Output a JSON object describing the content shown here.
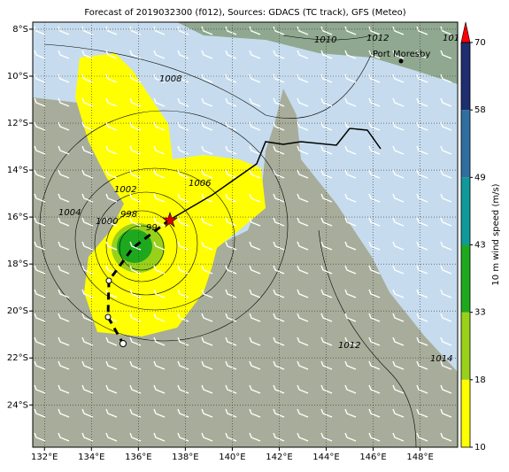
{
  "chart_data": {
    "type": "map",
    "title": "Forecast of 2019032300 (f012), Sources: GDACS (TC track), GFS (Meteo)",
    "xlim": [
      131.5,
      149.6
    ],
    "ylim": [
      -25.8,
      -7.7
    ],
    "xticks": [
      {
        "value": 132,
        "label": "132°E"
      },
      {
        "value": 134,
        "label": "134°E"
      },
      {
        "value": 136,
        "label": "136°E"
      },
      {
        "value": 138,
        "label": "138°E"
      },
      {
        "value": 140,
        "label": "140°E"
      },
      {
        "value": 142,
        "label": "142°E"
      },
      {
        "value": 144,
        "label": "144°E"
      },
      {
        "value": 146,
        "label": "146°E"
      },
      {
        "value": 148,
        "label": "148°E"
      }
    ],
    "yticks": [
      {
        "value": -8,
        "label": "8°S"
      },
      {
        "value": -10,
        "label": "10°S"
      },
      {
        "value": -12,
        "label": "12°S"
      },
      {
        "value": -14,
        "label": "14°S"
      },
      {
        "value": -16,
        "label": "16°S"
      },
      {
        "value": -18,
        "label": "18°S"
      },
      {
        "value": -20,
        "label": "20°S"
      },
      {
        "value": -22,
        "label": "22°S"
      },
      {
        "value": -24,
        "label": "24°S"
      }
    ],
    "grid": true,
    "place": "Port Moresby",
    "isobar_labels": [
      "1010",
      "1012",
      "101",
      "1008",
      "1006",
      "1004",
      "1002",
      "1000",
      "998",
      "99",
      "1012",
      "1014"
    ],
    "colorbar": {
      "label": "10 m wind speed (m/s)",
      "ticks": [
        10,
        18,
        33,
        43,
        49,
        58,
        70
      ],
      "colors": [
        "#ffff00",
        "#99d11a",
        "#1ea81e",
        "#10999a",
        "#2f6f9f",
        "#1e2e6e"
      ],
      "extend_color": "#ff0000"
    }
  }
}
